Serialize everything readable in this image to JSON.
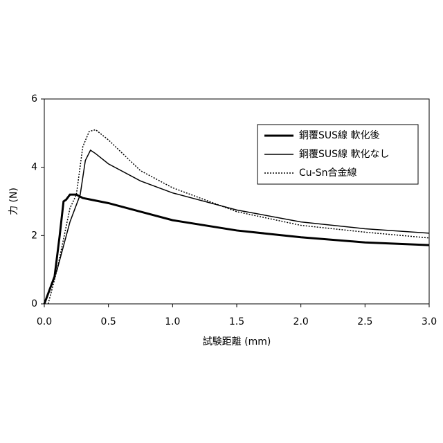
{
  "chart_data": {
    "type": "line",
    "xlabel": "試験距離 (mm)",
    "ylabel": "力 (N)",
    "xlim": [
      0,
      3
    ],
    "ylim": [
      0,
      6
    ],
    "xticks": [
      {
        "value": 0,
        "label": "0.0"
      },
      0.5,
      {
        "value": 1,
        "label": "1.0"
      },
      1.5,
      {
        "value": 2,
        "label": "2.0"
      },
      2.5,
      {
        "value": 3,
        "label": "3.0"
      }
    ],
    "yticks": [
      0,
      2,
      4,
      6
    ],
    "series": [
      {
        "name": "銅覆SUS線 軟化後",
        "color": "#000000",
        "width": 3,
        "dash": "none",
        "x": [
          0,
          0.05,
          0.08,
          0.12,
          0.15,
          0.17,
          0.2,
          0.25,
          0.3,
          0.5,
          0.75,
          1.0,
          1.5,
          2.0,
          2.5,
          3.0
        ],
        "values": [
          0,
          0.5,
          0.8,
          2.0,
          3.0,
          3.05,
          3.2,
          3.2,
          3.1,
          2.95,
          2.7,
          2.45,
          2.15,
          1.95,
          1.8,
          1.72
        ]
      },
      {
        "name": "銅覆SUS線 軟化なし",
        "color": "#000000",
        "width": 1.5,
        "dash": "none",
        "x": [
          0,
          0.1,
          0.2,
          0.28,
          0.32,
          0.36,
          0.4,
          0.5,
          0.75,
          1.0,
          1.5,
          2.0,
          2.5,
          3.0
        ],
        "values": [
          0,
          1.0,
          2.4,
          3.2,
          4.2,
          4.5,
          4.4,
          4.1,
          3.6,
          3.25,
          2.75,
          2.4,
          2.2,
          2.07
        ]
      },
      {
        "name": "Cu-Sn合金線",
        "color": "#000000",
        "width": 1.5,
        "dash": "2,2",
        "x": [
          0.03,
          0.1,
          0.2,
          0.25,
          0.3,
          0.35,
          0.4,
          0.5,
          0.75,
          1.0,
          1.5,
          2.0,
          2.5,
          3.0
        ],
        "values": [
          0,
          1.0,
          2.8,
          3.2,
          4.6,
          5.05,
          5.1,
          4.8,
          3.9,
          3.4,
          2.7,
          2.3,
          2.1,
          1.93
        ]
      }
    ]
  }
}
